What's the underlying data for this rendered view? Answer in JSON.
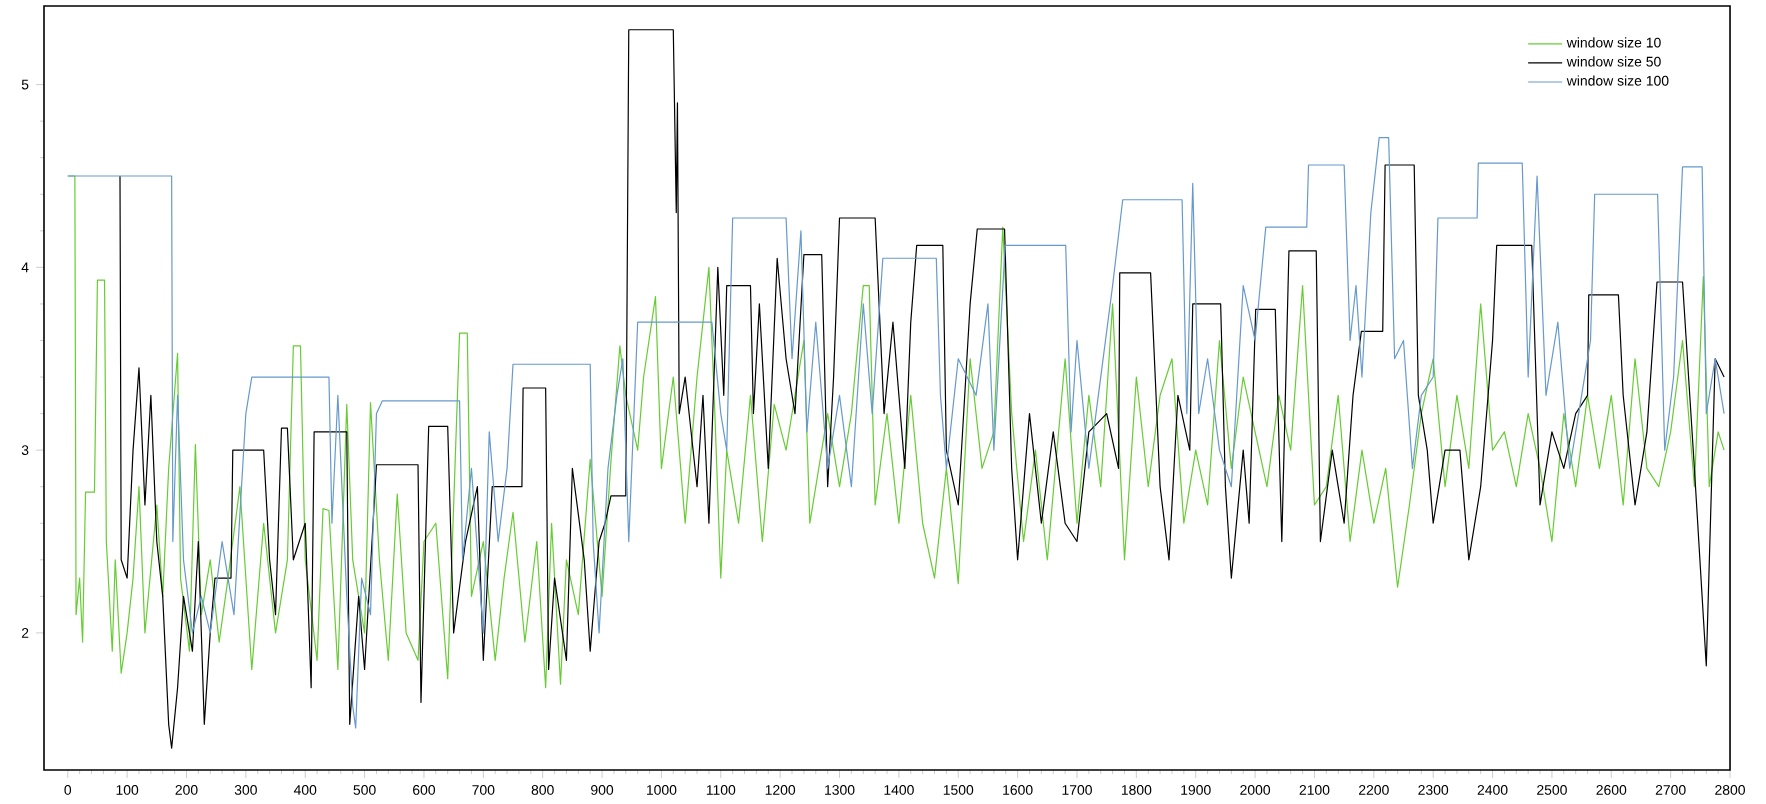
{
  "chart_data": {
    "type": "line",
    "legend": "top right",
    "marker": "none",
    "line_style": "solid",
    "grid": false,
    "xlim": [
      -40,
      2800
    ],
    "ylim": [
      1.25,
      5.43
    ],
    "xticks": [
      0,
      100,
      200,
      300,
      400,
      500,
      600,
      700,
      800,
      900,
      1000,
      1100,
      1200,
      1300,
      1400,
      1500,
      1600,
      1700,
      1800,
      1900,
      2000,
      2100,
      2200,
      2300,
      2400,
      2500,
      2600,
      2700,
      2800
    ],
    "yticks": [
      2,
      3,
      4,
      5
    ],
    "series": [
      {
        "name": "window size 10",
        "color": "#66cc33",
        "x": [
          0,
          12,
          14,
          20,
          25,
          30,
          45,
          50,
          62,
          65,
          75,
          80,
          90,
          100,
          110,
          120,
          130,
          150,
          160,
          170,
          185,
          190,
          205,
          215,
          225,
          240,
          255,
          270,
          290,
          310,
          330,
          350,
          370,
          380,
          392,
          400,
          420,
          430,
          440,
          455,
          470,
          480,
          500,
          510,
          525,
          540,
          555,
          570,
          590,
          600,
          620,
          640,
          660,
          673,
          680,
          700,
          720,
          735,
          750,
          770,
          790,
          805,
          815,
          830,
          840,
          860,
          880,
          900,
          915,
          930,
          940,
          960,
          970,
          990,
          1000,
          1020,
          1040,
          1060,
          1080,
          1090,
          1100,
          1110,
          1130,
          1150,
          1170,
          1190,
          1210,
          1240,
          1250,
          1280,
          1300,
          1320,
          1340,
          1350,
          1360,
          1380,
          1400,
          1420,
          1440,
          1460,
          1480,
          1500,
          1520,
          1540,
          1560,
          1575,
          1590,
          1610,
          1630,
          1650,
          1680,
          1700,
          1720,
          1740,
          1760,
          1780,
          1800,
          1820,
          1840,
          1860,
          1880,
          1900,
          1920,
          1940,
          1960,
          1980,
          2000,
          2020,
          2040,
          2060,
          2080,
          2100,
          2120,
          2140,
          2160,
          2180,
          2200,
          2220,
          2240,
          2260,
          2280,
          2300,
          2320,
          2340,
          2360,
          2380,
          2400,
          2420,
          2440,
          2460,
          2480,
          2500,
          2520,
          2540,
          2560,
          2580,
          2600,
          2620,
          2640,
          2660,
          2680,
          2700,
          2720,
          2740,
          2755,
          2765,
          2780,
          2790
        ],
        "values": [
          4.5,
          4.5,
          2.1,
          2.3,
          1.95,
          2.77,
          2.77,
          3.93,
          3.93,
          2.5,
          1.9,
          2.4,
          1.78,
          2.0,
          2.3,
          2.8,
          2.0,
          2.7,
          2.2,
          2.9,
          3.53,
          2.3,
          1.9,
          3.03,
          2.1,
          2.4,
          1.95,
          2.3,
          2.8,
          1.8,
          2.6,
          2.0,
          2.4,
          3.57,
          3.57,
          2.4,
          1.85,
          2.68,
          2.67,
          1.8,
          3.25,
          2.4,
          2.0,
          3.26,
          2.4,
          1.85,
          2.76,
          2.0,
          1.85,
          2.5,
          2.6,
          1.75,
          3.64,
          3.64,
          2.2,
          2.5,
          1.85,
          2.3,
          2.66,
          1.95,
          2.5,
          1.7,
          2.6,
          1.72,
          2.4,
          2.1,
          2.95,
          2.2,
          2.94,
          3.57,
          3.3,
          3.0,
          3.4,
          3.84,
          2.9,
          3.4,
          2.6,
          3.4,
          4.0,
          3.2,
          2.3,
          3.0,
          2.6,
          3.3,
          2.5,
          3.25,
          3.0,
          3.6,
          2.6,
          3.2,
          2.8,
          3.2,
          3.9,
          3.9,
          2.7,
          3.2,
          2.6,
          3.3,
          2.6,
          2.3,
          2.9,
          2.27,
          3.5,
          2.9,
          3.1,
          4.22,
          3.2,
          2.5,
          3.0,
          2.4,
          3.5,
          2.6,
          3.3,
          2.8,
          3.8,
          2.4,
          3.4,
          2.8,
          3.3,
          3.5,
          2.6,
          3.0,
          2.7,
          3.6,
          2.9,
          3.4,
          3.1,
          2.8,
          3.3,
          3.0,
          3.9,
          2.7,
          2.8,
          3.3,
          2.5,
          3.0,
          2.6,
          2.9,
          2.25,
          2.7,
          3.2,
          3.5,
          2.8,
          3.3,
          2.9,
          3.8,
          3.0,
          3.1,
          2.8,
          3.2,
          2.9,
          2.5,
          3.2,
          2.8,
          3.3,
          2.9,
          3.3,
          2.7,
          3.5,
          2.9,
          2.8,
          3.1,
          3.6,
          2.8,
          3.95,
          2.8,
          3.1,
          3.0
        ]
      },
      {
        "name": "window size 50",
        "color": "#000000",
        "x": [
          88,
          90,
          100,
          110,
          120,
          130,
          140,
          150,
          160,
          170,
          175,
          185,
          195,
          210,
          220,
          230,
          240,
          248,
          275,
          278,
          330,
          340,
          350,
          360,
          370,
          380,
          400,
          410,
          415,
          470,
          475,
          490,
          500,
          520,
          590,
          595,
          608,
          640,
          650,
          670,
          690,
          700,
          715,
          765,
          767,
          805,
          810,
          820,
          840,
          850,
          870,
          880,
          895,
          905,
          915,
          940,
          945,
          1020,
          1025,
          1027,
          1030,
          1040,
          1060,
          1070,
          1080,
          1095,
          1105,
          1110,
          1150,
          1155,
          1165,
          1180,
          1195,
          1210,
          1225,
          1240,
          1270,
          1280,
          1290,
          1300,
          1360,
          1375,
          1390,
          1410,
          1420,
          1430,
          1474,
          1480,
          1500,
          1520,
          1532,
          1578,
          1590,
          1600,
          1620,
          1640,
          1660,
          1680,
          1700,
          1720,
          1750,
          1770,
          1772,
          1824,
          1840,
          1855,
          1870,
          1890,
          1895,
          1942,
          1950,
          1960,
          1980,
          1990,
          2001,
          2034,
          2045,
          2057,
          2103,
          2110,
          2130,
          2150,
          2165,
          2179,
          2215,
          2219,
          2268,
          2275,
          2290,
          2300,
          2320,
          2345,
          2360,
          2380,
          2400,
          2407,
          2466,
          2480,
          2500,
          2520,
          2540,
          2560,
          2562,
          2612,
          2620,
          2640,
          2660,
          2677,
          2720,
          2740,
          2760,
          2775,
          2790
        ],
        "values": [
          4.5,
          2.4,
          2.3,
          3.0,
          3.45,
          2.7,
          3.3,
          2.5,
          2.2,
          1.5,
          1.37,
          1.7,
          2.2,
          1.9,
          2.5,
          1.5,
          2.0,
          2.3,
          2.3,
          3.0,
          3.0,
          2.4,
          2.1,
          3.12,
          3.12,
          2.4,
          2.6,
          1.7,
          3.1,
          3.1,
          1.5,
          2.2,
          1.8,
          2.92,
          2.92,
          1.62,
          3.13,
          3.13,
          2.0,
          2.5,
          2.8,
          1.85,
          2.8,
          2.8,
          3.34,
          3.34,
          1.8,
          2.3,
          1.85,
          2.9,
          2.4,
          1.9,
          2.5,
          2.6,
          2.75,
          2.75,
          5.3,
          5.3,
          4.3,
          4.9,
          3.2,
          3.4,
          2.8,
          3.3,
          2.6,
          4.0,
          3.3,
          3.9,
          3.9,
          3.2,
          3.8,
          2.9,
          4.05,
          3.5,
          3.2,
          4.07,
          4.07,
          2.8,
          3.4,
          4.27,
          4.27,
          3.2,
          3.7,
          2.9,
          3.7,
          4.12,
          4.12,
          3.0,
          2.7,
          3.8,
          4.21,
          4.21,
          2.9,
          2.4,
          3.2,
          2.6,
          3.1,
          2.6,
          2.5,
          3.1,
          3.2,
          2.9,
          3.97,
          3.97,
          2.8,
          2.4,
          3.3,
          3.0,
          3.8,
          3.8,
          2.8,
          2.3,
          3.0,
          2.6,
          3.77,
          3.77,
          2.5,
          4.09,
          4.09,
          2.5,
          3.0,
          2.6,
          3.3,
          3.65,
          3.65,
          4.56,
          4.56,
          3.3,
          3.0,
          2.6,
          3.0,
          3.0,
          2.4,
          2.8,
          3.6,
          4.12,
          4.12,
          2.7,
          3.1,
          2.9,
          3.2,
          3.3,
          3.85,
          3.85,
          3.3,
          2.7,
          3.1,
          3.92,
          3.92,
          2.9,
          1.82,
          3.5,
          3.4
        ]
      },
      {
        "name": "window size 100",
        "color": "#6699cc",
        "x": [
          0,
          175,
          177,
          185,
          195,
          210,
          225,
          240,
          260,
          280,
          300,
          310,
          440,
          445,
          455,
          470,
          480,
          485,
          495,
          510,
          520,
          530,
          660,
          665,
          680,
          700,
          710,
          725,
          740,
          750,
          880,
          885,
          895,
          910,
          925,
          935,
          945,
          960,
          1085,
          1100,
          1110,
          1120,
          1210,
          1220,
          1235,
          1245,
          1260,
          1280,
          1300,
          1320,
          1340,
          1355,
          1373,
          1463,
          1470,
          1480,
          1500,
          1530,
          1550,
          1560,
          1579,
          1681,
          1690,
          1700,
          1720,
          1740,
          1760,
          1777,
          1877,
          1885,
          1895,
          1905,
          1920,
          1940,
          1960,
          1980,
          2000,
          2018,
          2087,
          2090,
          2150,
          2160,
          2170,
          2180,
          2195,
          2209,
          2225,
          2235,
          2250,
          2265,
          2280,
          2300,
          2308,
          2374,
          2376,
          2450,
          2460,
          2475,
          2490,
          2510,
          2530,
          2550,
          2565,
          2572,
          2678,
          2690,
          2705,
          2720,
          2753,
          2760,
          2775,
          2790
        ],
        "values": [
          4.5,
          4.5,
          2.5,
          3.3,
          2.4,
          2.0,
          2.2,
          2.0,
          2.5,
          2.1,
          3.2,
          3.4,
          3.4,
          2.6,
          3.3,
          2.2,
          1.6,
          1.48,
          2.3,
          2.1,
          3.2,
          3.27,
          3.27,
          2.4,
          2.9,
          2.0,
          3.1,
          2.5,
          2.9,
          3.47,
          3.47,
          2.5,
          2.0,
          2.9,
          3.3,
          3.5,
          2.5,
          3.7,
          3.7,
          3.2,
          3.0,
          4.27,
          4.27,
          3.5,
          4.2,
          3.1,
          3.7,
          2.9,
          3.3,
          2.8,
          3.8,
          3.2,
          4.05,
          4.05,
          3.3,
          2.9,
          3.5,
          3.3,
          3.8,
          3.0,
          4.12,
          4.12,
          3.1,
          3.6,
          2.9,
          3.4,
          3.9,
          4.37,
          4.37,
          3.2,
          4.46,
          3.2,
          3.5,
          3.0,
          2.8,
          3.9,
          3.6,
          4.22,
          4.22,
          4.56,
          4.56,
          3.6,
          3.9,
          3.4,
          4.3,
          4.71,
          4.71,
          3.5,
          3.6,
          2.9,
          3.3,
          3.4,
          4.27,
          4.27,
          4.57,
          4.57,
          3.4,
          4.5,
          3.3,
          3.7,
          2.9,
          3.3,
          3.6,
          4.4,
          4.4,
          3.0,
          3.4,
          4.55,
          4.55,
          3.2,
          3.5,
          3.2
        ]
      }
    ]
  }
}
